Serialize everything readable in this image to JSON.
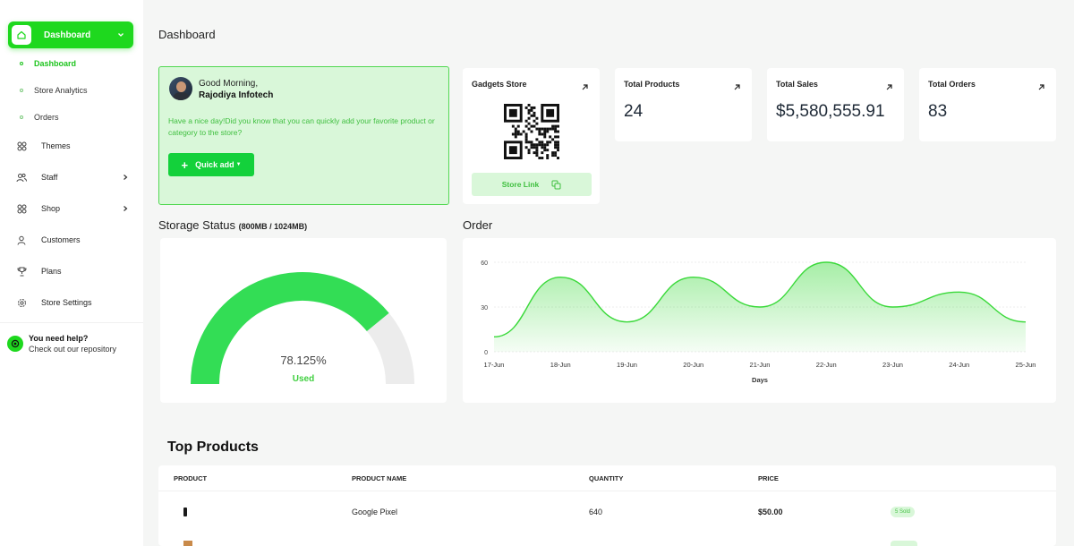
{
  "sidebar": {
    "main": {
      "label": "Dashboard"
    },
    "sub_items": [
      {
        "label": "Dashboard",
        "active": true
      },
      {
        "label": "Store Analytics",
        "active": false
      },
      {
        "label": "Orders",
        "active": false
      }
    ],
    "items": [
      {
        "label": "Themes",
        "icon": "grid-icon",
        "has_arrow": false
      },
      {
        "label": "Staff",
        "icon": "users-icon",
        "has_arrow": true
      },
      {
        "label": "Shop",
        "icon": "grid-icon",
        "has_arrow": true
      },
      {
        "label": "Customers",
        "icon": "user-icon",
        "has_arrow": false
      },
      {
        "label": "Plans",
        "icon": "trophy-icon",
        "has_arrow": false
      },
      {
        "label": "Store Settings",
        "icon": "gear-icon",
        "has_arrow": false
      }
    ],
    "help": {
      "title": "You need help?",
      "subtitle": "Check out our repository"
    }
  },
  "page": {
    "title": "Dashboard"
  },
  "greeting": {
    "line1": "Good Morning,",
    "name": "Rajodiya Infotech",
    "message": "Have a nice day!Did you know that you can quickly add your favorite product or category to the store?",
    "button": "Quick add"
  },
  "stats": {
    "store": {
      "title": "Gadgets Store",
      "link_label": "Store Link"
    },
    "products": {
      "title": "Total Products",
      "value": "24"
    },
    "sales": {
      "title": "Total Sales",
      "value": "$5,580,555.91"
    },
    "orders": {
      "title": "Total Orders",
      "value": "83"
    }
  },
  "storage": {
    "title": "Storage Status",
    "detail": "(800MB / 1024MB)",
    "percent_label": "78.125%",
    "used_label": "Used",
    "fraction": 0.78125
  },
  "order_chart": {
    "title": "Order"
  },
  "chart_data": {
    "type": "area",
    "x": [
      "17-Jun",
      "18-Jun",
      "19-Jun",
      "20-Jun",
      "21-Jun",
      "22-Jun",
      "23-Jun",
      "24-Jun",
      "25-Jun"
    ],
    "values": [
      10,
      50,
      20,
      50,
      30,
      60,
      30,
      40,
      20
    ],
    "xlabel": "Days",
    "ylabel": "",
    "yticks": [
      0,
      30,
      60
    ],
    "ylim": [
      0,
      60
    ]
  },
  "top_products": {
    "title": "Top Products",
    "headers": [
      "Product",
      "Product Name",
      "Quantity",
      "Price"
    ],
    "rows": [
      {
        "name": "Google Pixel",
        "quantity": "640",
        "price": "$50.00",
        "badge": "5 Sold"
      }
    ]
  },
  "colors": {
    "accent": "#1ed81e",
    "accent_light": "#d9f7d9",
    "gauge_track": "#ececec"
  }
}
